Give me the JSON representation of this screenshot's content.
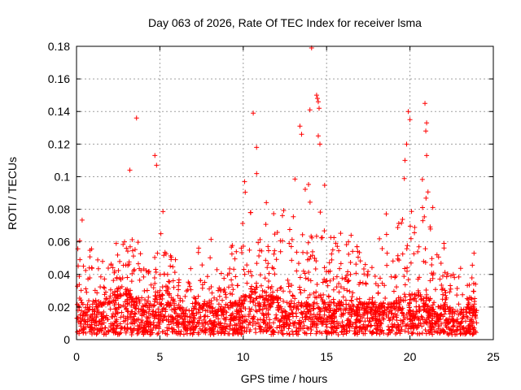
{
  "chart_data": {
    "type": "scatter",
    "title": "Day 063 of 2026, Rate Of TEC Index for receiver lsma",
    "xlabel": "GPS time / hours",
    "ylabel": "ROTI / TECUs",
    "xlim": [
      0,
      25
    ],
    "ylim": [
      0,
      0.18
    ],
    "xticks": [
      "0",
      "5",
      "10",
      "15",
      "20",
      "25"
    ],
    "yticks": [
      "0",
      "0.02",
      "0.04",
      "0.06",
      "0.08",
      "0.1",
      "0.12",
      "0.14",
      "0.16",
      "0.18"
    ],
    "grid": true,
    "marker": "+",
    "color": "#ff0000",
    "x_range_of_data": [
      0,
      24
    ],
    "envelope": {
      "hours": [
        0.0,
        0.3,
        0.6,
        1.0,
        1.5,
        2.0,
        2.5,
        3.0,
        3.5,
        4.0,
        4.5,
        5.0,
        5.5,
        6.0,
        6.5,
        7.0,
        7.5,
        8.0,
        8.5,
        9.0,
        9.5,
        10.0,
        10.5,
        11.0,
        11.5,
        12.0,
        12.5,
        13.0,
        13.5,
        14.0,
        14.5,
        15.0,
        15.5,
        16.0,
        16.5,
        17.0,
        17.5,
        18.0,
        18.5,
        19.0,
        19.5,
        20.0,
        20.5,
        21.0,
        21.5,
        22.0,
        22.5,
        23.0,
        23.5,
        24.0
      ],
      "typical_max": [
        0.06,
        0.08,
        0.05,
        0.06,
        0.05,
        0.06,
        0.06,
        0.08,
        0.07,
        0.05,
        0.06,
        0.09,
        0.07,
        0.05,
        0.03,
        0.07,
        0.05,
        0.07,
        0.04,
        0.05,
        0.07,
        0.1,
        0.11,
        0.1,
        0.08,
        0.1,
        0.08,
        0.12,
        0.09,
        0.1,
        0.13,
        0.09,
        0.08,
        0.07,
        0.09,
        0.07,
        0.06,
        0.07,
        0.08,
        0.07,
        0.09,
        0.12,
        0.08,
        0.12,
        0.07,
        0.06,
        0.05,
        0.06,
        0.04,
        0.06
      ],
      "typical_dense": [
        0.02,
        0.02,
        0.02,
        0.025,
        0.02,
        0.025,
        0.03,
        0.03,
        0.025,
        0.02,
        0.02,
        0.03,
        0.03,
        0.02,
        0.015,
        0.02,
        0.02,
        0.02,
        0.015,
        0.02,
        0.02,
        0.025,
        0.03,
        0.03,
        0.025,
        0.025,
        0.02,
        0.025,
        0.02,
        0.02,
        0.025,
        0.025,
        0.02,
        0.02,
        0.025,
        0.02,
        0.02,
        0.02,
        0.02,
        0.02,
        0.025,
        0.025,
        0.025,
        0.025,
        0.02,
        0.02,
        0.015,
        0.015,
        0.02,
        0.02
      ]
    },
    "outliers": [
      {
        "x": 3.6,
        "y": 0.136
      },
      {
        "x": 4.7,
        "y": 0.113
      },
      {
        "x": 4.8,
        "y": 0.107
      },
      {
        "x": 3.2,
        "y": 0.104
      },
      {
        "x": 10.6,
        "y": 0.139
      },
      {
        "x": 10.8,
        "y": 0.118
      },
      {
        "x": 13.4,
        "y": 0.131
      },
      {
        "x": 13.5,
        "y": 0.126
      },
      {
        "x": 14.0,
        "y": 0.141
      },
      {
        "x": 14.1,
        "y": 0.179
      },
      {
        "x": 14.4,
        "y": 0.15
      },
      {
        "x": 14.45,
        "y": 0.148
      },
      {
        "x": 14.5,
        "y": 0.146
      },
      {
        "x": 14.55,
        "y": 0.142
      },
      {
        "x": 14.5,
        "y": 0.125
      },
      {
        "x": 14.6,
        "y": 0.12
      },
      {
        "x": 19.9,
        "y": 0.14
      },
      {
        "x": 20.0,
        "y": 0.135
      },
      {
        "x": 20.9,
        "y": 0.145
      },
      {
        "x": 21.0,
        "y": 0.133
      },
      {
        "x": 20.95,
        "y": 0.128
      },
      {
        "x": 21.0,
        "y": 0.113
      },
      {
        "x": 19.8,
        "y": 0.12
      },
      {
        "x": 19.7,
        "y": 0.11
      }
    ]
  }
}
